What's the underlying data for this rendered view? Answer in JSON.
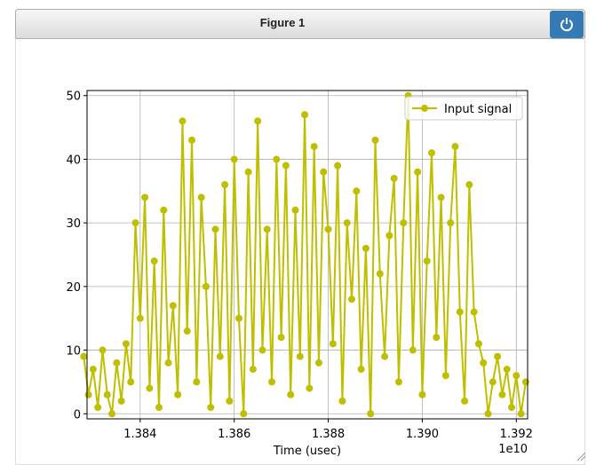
{
  "window": {
    "title": "Figure 1"
  },
  "chart_data": {
    "type": "line",
    "xlabel": "Time (usec)",
    "x_offset_label": "1e10",
    "x": [
      13828000000,
      13829000000,
      13830000000,
      13831000000,
      13832000000,
      13833000000,
      13834000000,
      13835000000,
      13836000000,
      13837000000,
      13838000000,
      13839000000,
      13840000000,
      13841000000,
      13842000000,
      13843000000,
      13844000000,
      13845000000,
      13846000000,
      13847000000,
      13848000000,
      13849000000,
      13850000000,
      13851000000,
      13852000000,
      13853000000,
      13854000000,
      13855000000,
      13856000000,
      13857000000,
      13858000000,
      13859000000,
      13860000000,
      13861000000,
      13862000000,
      13863000000,
      13864000000,
      13865000000,
      13866000000,
      13867000000,
      13868000000,
      13869000000,
      13870000000,
      13871000000,
      13872000000,
      13873000000,
      13874000000,
      13875000000,
      13876000000,
      13877000000,
      13878000000,
      13879000000,
      13880000000,
      13881000000,
      13882000000,
      13883000000,
      13884000000,
      13885000000,
      13886000000,
      13887000000,
      13888000000,
      13889000000,
      13890000000,
      13891000000,
      13892000000,
      13893000000,
      13894000000,
      13895000000,
      13896000000,
      13897000000,
      13898000000,
      13899000000,
      13900000000,
      13901000000,
      13902000000,
      13903000000,
      13904000000,
      13905000000,
      13906000000,
      13907000000,
      13908000000,
      13909000000,
      13910000000,
      13911000000,
      13912000000,
      13913000000,
      13914000000,
      13915000000,
      13916000000,
      13917000000,
      13918000000,
      13919000000,
      13920000000,
      13921000000,
      13922000000
    ],
    "series": [
      {
        "name": "Input signal",
        "color": "#bfbf00",
        "values": [
          9,
          3,
          7,
          1,
          10,
          3,
          0,
          8,
          2,
          11,
          5,
          30,
          15,
          34,
          4,
          24,
          1,
          32,
          8,
          17,
          3,
          46,
          13,
          43,
          5,
          34,
          20,
          1,
          29,
          9,
          36,
          2,
          40,
          15,
          0,
          38,
          7,
          46,
          10,
          29,
          5,
          40,
          12,
          39,
          3,
          32,
          9,
          47,
          4,
          42,
          8,
          38,
          29,
          11,
          39,
          2,
          30,
          18,
          35,
          7,
          26,
          0,
          43,
          22,
          9,
          28,
          37,
          5,
          30,
          50,
          10,
          38,
          3,
          24,
          41,
          12,
          34,
          6,
          30,
          42,
          16,
          2,
          36,
          16,
          11,
          8,
          0,
          5,
          9,
          3,
          7,
          1,
          6,
          0,
          5
        ]
      }
    ],
    "xlim": [
      13828700000,
      13922400000
    ],
    "ylim": [
      -0.8,
      50.8
    ],
    "xticks": [
      {
        "value": 13840000000,
        "label": "1.384"
      },
      {
        "value": 13860000000,
        "label": "1.386"
      },
      {
        "value": 13880000000,
        "label": "1.388"
      },
      {
        "value": 13900000000,
        "label": "1.390"
      },
      {
        "value": 13920000000,
        "label": "1.392"
      }
    ],
    "yticks": [
      0,
      10,
      20,
      30,
      40,
      50
    ],
    "grid": true,
    "legend": "upper right"
  }
}
